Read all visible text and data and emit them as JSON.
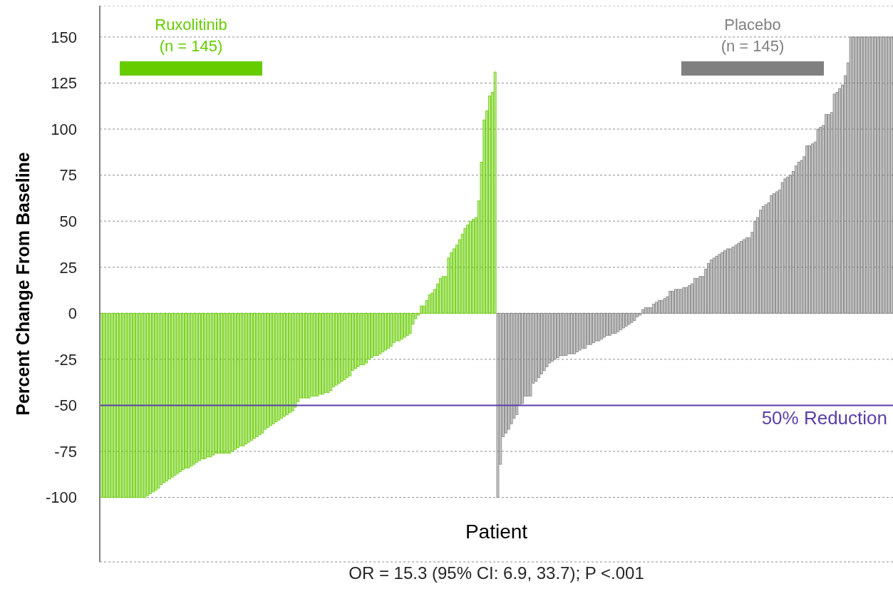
{
  "chart_data": {
    "type": "bar",
    "ylabel": "Percent Change From Baseline",
    "xlabel": "Patient",
    "annotations": [
      "OR = 15.3 (95% CI: 6.9, 33.7); P <.001"
    ],
    "categories": [
      null,
      null,
      null,
      null,
      null,
      null,
      null,
      null,
      null,
      null,
      null,
      null,
      null,
      null,
      null,
      null,
      null,
      null,
      null,
      null,
      null,
      null,
      null,
      null,
      null,
      null,
      null,
      null,
      null,
      null,
      null,
      null,
      null,
      null,
      null,
      null,
      null,
      null,
      null,
      null,
      null,
      null,
      null,
      null,
      null,
      null,
      null,
      null,
      null,
      null,
      null,
      null,
      null,
      null,
      null,
      null,
      null,
      null,
      null,
      null,
      null,
      null,
      null,
      null,
      null,
      null,
      null,
      null,
      null,
      null,
      null,
      null,
      null,
      null,
      null,
      null,
      null,
      null,
      null,
      null,
      null,
      null,
      null,
      null,
      null,
      null,
      null,
      null,
      null,
      null,
      null,
      null,
      null,
      null,
      null,
      null,
      null,
      null,
      null,
      null,
      null,
      null,
      null,
      null,
      null,
      null,
      null,
      null,
      null,
      null,
      null,
      null,
      null,
      null,
      null,
      null,
      null,
      null,
      null,
      null,
      null,
      null,
      null,
      null,
      null,
      null,
      null,
      null,
      null,
      null,
      null,
      null,
      null,
      null,
      null,
      null,
      null,
      null,
      null,
      null,
      null,
      null,
      null,
      null,
      null,
      null,
      null,
      null,
      null,
      null,
      null,
      null,
      null,
      null,
      null,
      null,
      null,
      null,
      null,
      null,
      null,
      null,
      null,
      null,
      null,
      null,
      null,
      null,
      null,
      null,
      null,
      null,
      null,
      null,
      null,
      null,
      null,
      null,
      null,
      null,
      null,
      null,
      null,
      null,
      null,
      null,
      null,
      null,
      null,
      null,
      null,
      null,
      null,
      null,
      null,
      null,
      null,
      null,
      null,
      null,
      null,
      null,
      null,
      null,
      null,
      null,
      null,
      null,
      null,
      null,
      null,
      null,
      null,
      null,
      null,
      null,
      null,
      null,
      null,
      null,
      null,
      null,
      null,
      null,
      null,
      null,
      null,
      null,
      null,
      null,
      null,
      null,
      null,
      null,
      null,
      null,
      null,
      null,
      null,
      null,
      null,
      null,
      null,
      null,
      null,
      null,
      null,
      null,
      null,
      null,
      null,
      null,
      null,
      null,
      null,
      null,
      null,
      null,
      null,
      null,
      null,
      null,
      null,
      null,
      null,
      null,
      null,
      null,
      null,
      null,
      null,
      null,
      null,
      null,
      null,
      null,
      null,
      null,
      null,
      null,
      null,
      null,
      null,
      null,
      null,
      null,
      null,
      null,
      null,
      null
    ],
    "series": [
      {
        "name": "Ruxolitinib\n(n = 145)",
        "color": "#66cc00",
        "values": [
          -100,
          -100,
          -100,
          -100,
          -100,
          -100,
          -100,
          -100,
          -100,
          -100,
          -100,
          -100,
          -100,
          -100,
          -100,
          -100,
          -100,
          -99,
          -98,
          -97,
          -96,
          -95,
          -93,
          -92,
          -91,
          -90,
          -89,
          -88,
          -87,
          -86,
          -85,
          -84,
          -84,
          -83,
          -82,
          -81,
          -80,
          -79,
          -79,
          -78,
          -78,
          -77,
          -76,
          -76,
          -76,
          -76,
          -76,
          -76,
          -75,
          -74,
          -73,
          -72,
          -72,
          -71,
          -70,
          -69,
          -68,
          -67,
          -66,
          -65,
          -63,
          -62,
          -61,
          -60,
          -59,
          -58,
          -57,
          -56,
          -55,
          -54,
          -53,
          -51,
          -48,
          -46,
          -46,
          -46,
          -46,
          -45,
          -45,
          -45,
          -44,
          -44,
          -43,
          -43,
          -42,
          -40,
          -39,
          -38,
          -37,
          -36,
          -35,
          -34,
          -31,
          -30,
          -29,
          -28,
          -28,
          -27,
          -25,
          -24,
          -23,
          -23,
          -22,
          -21,
          -20,
          -19,
          -18,
          -16,
          -15,
          -15,
          -14,
          -13,
          -12,
          -11,
          -6,
          -3,
          -1,
          4,
          4,
          7,
          10,
          11,
          13,
          16,
          19,
          20,
          20,
          30,
          33,
          35,
          37,
          40,
          43,
          46,
          48,
          50,
          51,
          52,
          61,
          82,
          105,
          110,
          118,
          120,
          131,
          null,
          null,
          null,
          null,
          null,
          null,
          null,
          null,
          null,
          null,
          null,
          null,
          null,
          null,
          null,
          null,
          null,
          null,
          null,
          null,
          null,
          null,
          null,
          null,
          null,
          null,
          null,
          null,
          null,
          null,
          null,
          null,
          null,
          null,
          null,
          null,
          null,
          null,
          null,
          null,
          null,
          null,
          null,
          null,
          null,
          null,
          null,
          null,
          null,
          null,
          null,
          null,
          null,
          null,
          null,
          null,
          null,
          null,
          null,
          null,
          null,
          null,
          null,
          null,
          null,
          null,
          null,
          null,
          null,
          null,
          null,
          null,
          null,
          null,
          null,
          null,
          null,
          null,
          null,
          null,
          null,
          null,
          null,
          null,
          null,
          null,
          null,
          null,
          null,
          null,
          null,
          null,
          null,
          null,
          null,
          null,
          null,
          null,
          null,
          null,
          null,
          null,
          null,
          null,
          null,
          null,
          null,
          null,
          null,
          null,
          null,
          null,
          null,
          null,
          null,
          null,
          null,
          null,
          null,
          null,
          null,
          null,
          null,
          null,
          null,
          null,
          null,
          null,
          null,
          null,
          null,
          null,
          null,
          null,
          null,
          null,
          null,
          null,
          null,
          null,
          null,
          null,
          null,
          null,
          null
        ]
      },
      {
        "name": "Placebo\n(n = 145)",
        "color": "#808080",
        "values": [
          null,
          null,
          null,
          null,
          null,
          null,
          null,
          null,
          null,
          null,
          null,
          null,
          null,
          null,
          null,
          null,
          null,
          null,
          null,
          null,
          null,
          null,
          null,
          null,
          null,
          null,
          null,
          null,
          null,
          null,
          null,
          null,
          null,
          null,
          null,
          null,
          null,
          null,
          null,
          null,
          null,
          null,
          null,
          null,
          null,
          null,
          null,
          null,
          null,
          null,
          null,
          null,
          null,
          null,
          null,
          null,
          null,
          null,
          null,
          null,
          null,
          null,
          null,
          null,
          null,
          null,
          null,
          null,
          null,
          null,
          null,
          null,
          null,
          null,
          null,
          null,
          null,
          null,
          null,
          null,
          null,
          null,
          null,
          null,
          null,
          null,
          null,
          null,
          null,
          null,
          null,
          null,
          null,
          null,
          null,
          null,
          null,
          null,
          null,
          null,
          null,
          null,
          null,
          null,
          null,
          null,
          null,
          null,
          null,
          null,
          null,
          null,
          null,
          null,
          null,
          null,
          null,
          null,
          null,
          null,
          null,
          null,
          null,
          null,
          null,
          null,
          null,
          null,
          null,
          null,
          null,
          null,
          null,
          null,
          null,
          null,
          null,
          null,
          null,
          null,
          null,
          null,
          null,
          null,
          null,
          -100,
          -82,
          -67,
          -65,
          -63,
          -60,
          -57,
          -55,
          -50,
          -49,
          -45,
          -45,
          -45,
          -38,
          -37,
          -35,
          -33,
          -31,
          -29,
          -27,
          -26,
          -25,
          -24,
          -23,
          -23,
          -23,
          -22,
          -22,
          -22,
          -21,
          -20,
          -19,
          -19,
          -17,
          -17,
          -16,
          -15,
          -15,
          -14,
          -13,
          -12,
          -12,
          -11,
          -11,
          -10,
          -9,
          -8,
          -7,
          -6,
          -5,
          -4,
          -2,
          -1,
          2,
          3,
          3,
          3,
          5,
          6,
          7,
          7,
          8,
          9,
          12,
          12,
          13,
          13,
          13,
          14,
          14,
          15,
          16,
          19,
          19,
          20,
          20,
          24,
          27,
          29,
          30,
          31,
          32,
          33,
          34,
          35,
          35,
          36,
          37,
          38,
          39,
          40,
          41,
          41,
          44,
          50,
          52,
          56,
          58,
          59,
          60,
          64,
          65,
          66,
          67,
          71,
          73,
          74,
          75,
          77,
          80,
          82,
          83,
          85,
          91,
          91,
          92,
          93,
          100,
          101,
          102,
          108,
          108,
          109,
          119,
          120,
          122,
          124,
          129,
          136,
          150,
          150,
          150,
          150,
          150,
          150,
          150,
          150,
          150,
          150,
          150,
          150,
          150,
          150,
          150,
          150
        ]
      }
    ],
    "ylim": [
      -135,
      167
    ],
    "yticks": [
      -100,
      -75,
      -50,
      -25,
      0,
      25,
      50,
      75,
      100,
      125,
      150
    ],
    "grid": "y",
    "legend": "top",
    "tick_labels": "y",
    "ref_lines": [
      {
        "axis": "y",
        "value": -50,
        "label": "50% Reduction",
        "color": "#5b3fa8"
      }
    ]
  }
}
